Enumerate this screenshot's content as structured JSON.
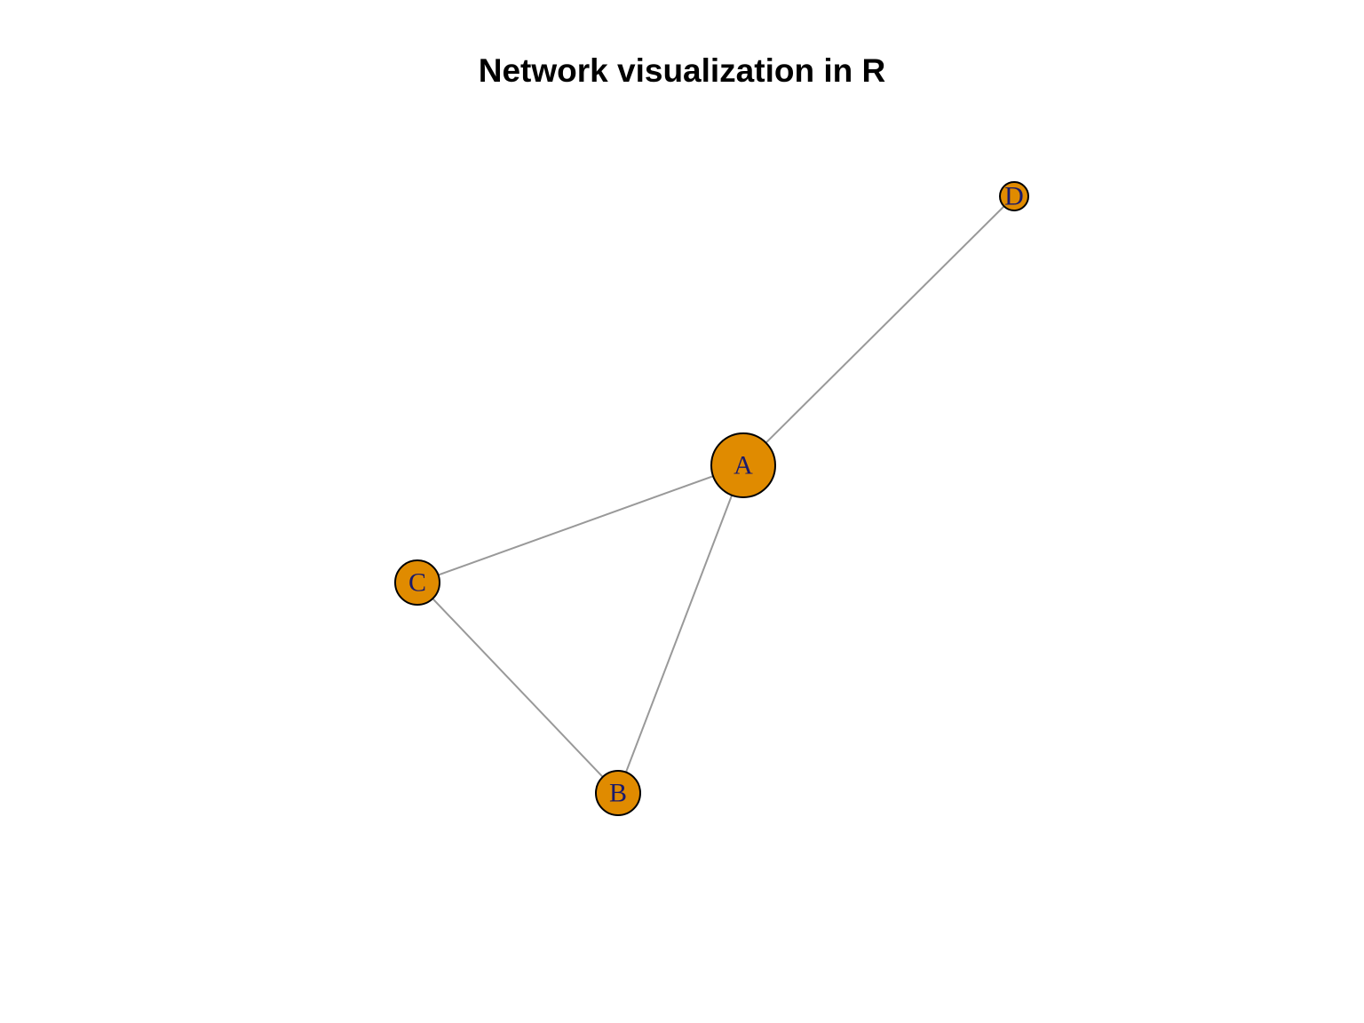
{
  "title": "Network visualization in R",
  "colors": {
    "node_fill": "#E08B00",
    "node_stroke": "#000000",
    "edge": "#999999",
    "label": "#1A1A6B"
  },
  "nodes": [
    {
      "id": "A",
      "label": "A",
      "degree": 3
    },
    {
      "id": "B",
      "label": "B",
      "degree": 2
    },
    {
      "id": "C",
      "label": "C",
      "degree": 2
    },
    {
      "id": "D",
      "label": "D",
      "degree": 1
    }
  ],
  "edges": [
    {
      "from": "A",
      "to": "D"
    },
    {
      "from": "A",
      "to": "C"
    },
    {
      "from": "A",
      "to": "B"
    },
    {
      "from": "C",
      "to": "B"
    }
  ]
}
